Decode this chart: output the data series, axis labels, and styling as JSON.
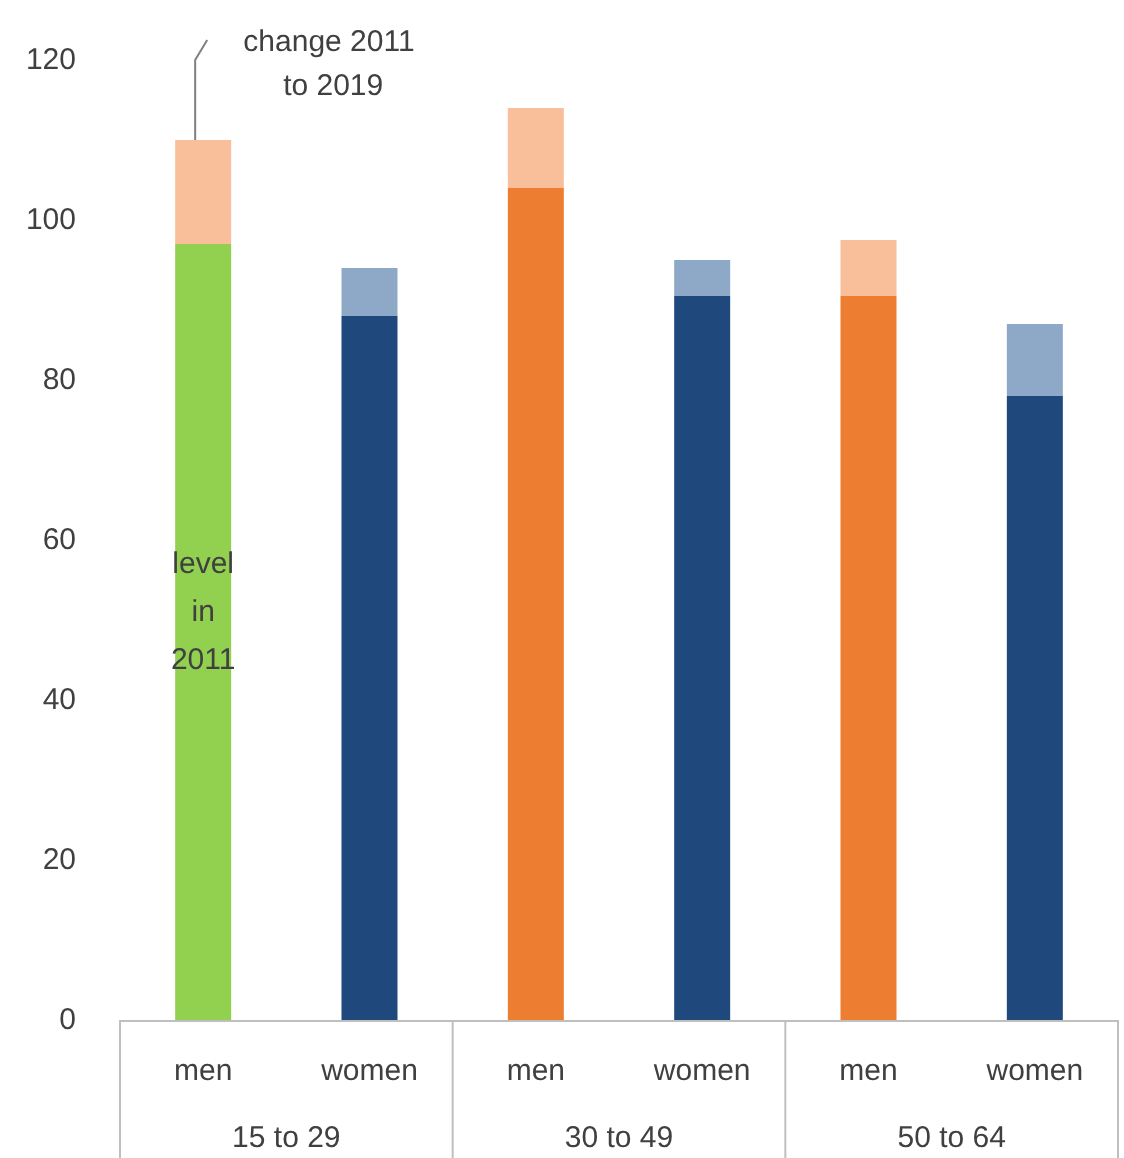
{
  "chart_data": {
    "type": "bar",
    "stacked": true,
    "categories": [
      "men",
      "women",
      "men",
      "women",
      "men",
      "women"
    ],
    "series": [
      {
        "colors": [
          "#92d050",
          "#1f497d",
          "#ed7d31",
          "#1f497d",
          "#ed7d31",
          "#1f497d"
        ],
        "values": [
          97,
          88,
          104,
          90.5,
          90.5,
          78
        ]
      },
      {
        "colors": [
          "#f8bf9a",
          "#8ea9c8",
          "#f8bf9a",
          "#8ea9c8",
          "#f8bf9a",
          "#8ea9c8"
        ],
        "values": [
          13,
          6,
          10,
          4.5,
          7,
          9
        ]
      }
    ],
    "ylim": [
      0,
      120
    ],
    "yticks": [
      0,
      20,
      40,
      60,
      80,
      100,
      120
    ],
    "grid": false,
    "annotations": [
      "15 to 29",
      "30 to 49",
      "50 to 64",
      "level in 2011",
      {
        "text": "change 2011 to 2019",
        "x": "men",
        "y": 110
      }
    ]
  }
}
